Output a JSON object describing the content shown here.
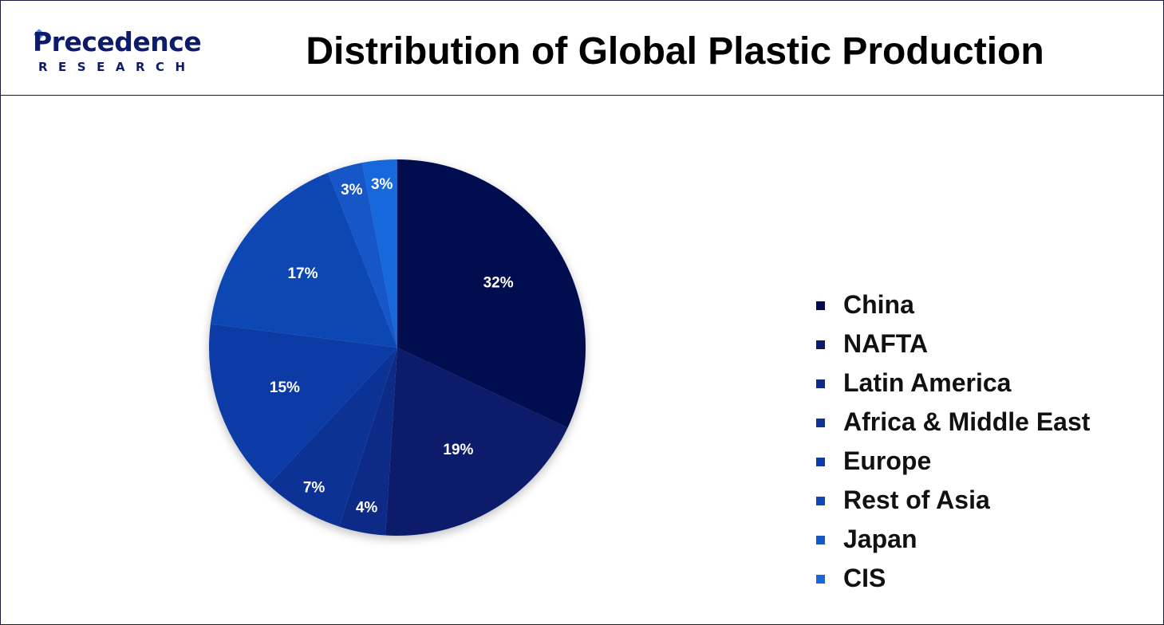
{
  "header": {
    "logo_main": "Precedence",
    "logo_sub": "RESEARCH",
    "title": "Distribution of Global Plastic Production"
  },
  "chart_data": {
    "type": "pie",
    "title": "Distribution of Global Plastic Production",
    "categories": [
      "China",
      "NAFTA",
      "Latin America",
      "Africa & Middle East",
      "Europe",
      "Rest of Asia",
      "Japan",
      "CIS"
    ],
    "values": [
      32,
      19,
      4,
      7,
      15,
      17,
      3,
      3
    ],
    "labels": [
      "32%",
      "19%",
      "4%",
      "7%",
      "15%",
      "17%",
      "3%",
      "3%"
    ],
    "unit": "%",
    "colors": [
      "#030a4f",
      "#0b1a6b",
      "#0d2a86",
      "#0e3296",
      "#0e3ba6",
      "#1147b4",
      "#1457c7",
      "#1668dc"
    ],
    "start_angle_deg": 0,
    "direction": "clockwise",
    "legend_position": "right",
    "label_color": "#ffffff"
  }
}
